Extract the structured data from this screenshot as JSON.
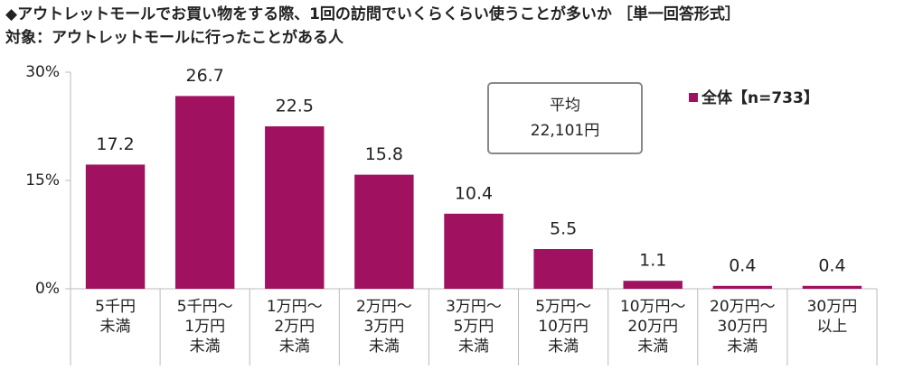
{
  "chart_data": {
    "type": "bar",
    "title": "◆アウトレットモールでお買い物をする際、1回の訪問でいくらくらい使うことが多いか ［単一回答形式］",
    "subtitle": "対象：アウトレットモールに行ったことがある人",
    "categories": [
      [
        "5千円",
        "未満"
      ],
      [
        "5千円～",
        "1万円",
        "未満"
      ],
      [
        "1万円～",
        "2万円",
        "未満"
      ],
      [
        "2万円～",
        "3万円",
        "未満"
      ],
      [
        "3万円～",
        "5万円",
        "未満"
      ],
      [
        "5万円～",
        "10万円",
        "未満"
      ],
      [
        "10万円～",
        "20万円",
        "未満"
      ],
      [
        "20万円～",
        "30万円",
        "未満"
      ],
      [
        "30万円",
        "以上"
      ]
    ],
    "series": [
      {
        "name": "全体【n=733】",
        "color": "#a0125f",
        "values": [
          17.2,
          26.7,
          22.5,
          15.8,
          10.4,
          5.5,
          1.1,
          0.4,
          0.4
        ]
      }
    ],
    "ylim": [
      0,
      30
    ],
    "yticks": [
      {
        "value": 0,
        "label": "0%"
      },
      {
        "value": 15,
        "label": "15%"
      },
      {
        "value": 30,
        "label": "30%"
      }
    ],
    "annotation": [
      "平均",
      "22,101円"
    ],
    "legend": "upper-right",
    "grid": false
  }
}
